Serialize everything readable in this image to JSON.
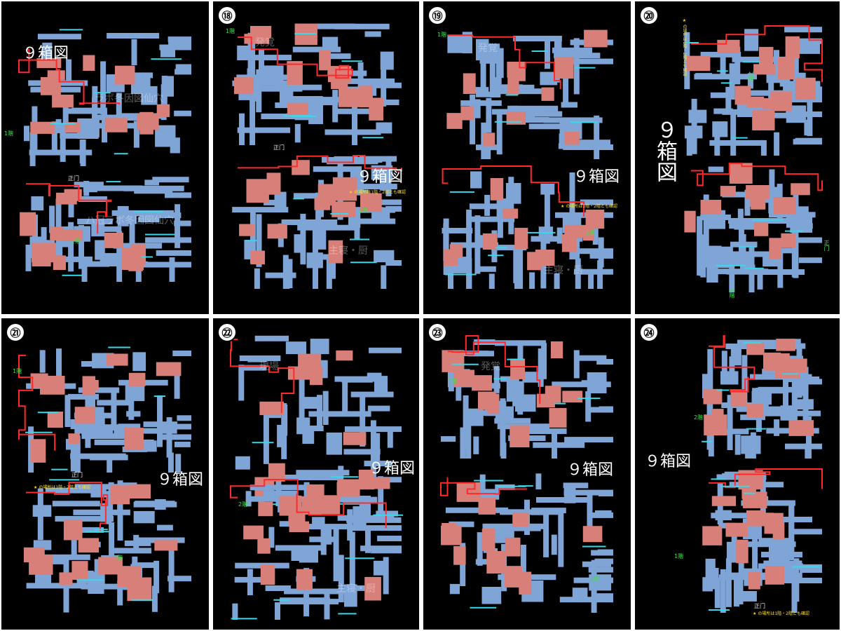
{
  "colors": {
    "background": "#000000",
    "room_blue": "#7fa4d6",
    "room_red": "#d77f78",
    "route_red": "#ff2a2a",
    "route_cyan": "#38d7ea",
    "label_green": "#3ee04a",
    "note_yellow": "#ffe033",
    "star": "#ffd21e"
  },
  "panels": [
    {
      "number": "",
      "title": "９箱図",
      "labels": {
        "first_floor": "1階",
        "gate": "正门",
        "second_floor": "2階"
      },
      "ghost_text": [
        "ラボ冬因図仙穴",
        "ハ冠ラボ冬因図仙穴"
      ]
    },
    {
      "number": "⑱",
      "title": "９箱図",
      "labels": {
        "first_floor": "1階",
        "gate": "正门",
        "second_floor": "2階"
      },
      "note_icon": "star-icon",
      "note": "の場所は1階・2階とも確認",
      "ghost_text": [
        "発覚",
        "主寝・厨"
      ]
    },
    {
      "number": "⑲",
      "title": "９箱図",
      "labels": {
        "first_floor": "1階",
        "second_floor": "2階"
      },
      "note_icon": "star-icon",
      "note": "の場所は1階・2階とも確認",
      "ghost_text": [
        "発覚",
        "主寝・厨"
      ]
    },
    {
      "number": "⑳",
      "title": "９箱図",
      "labels": {
        "first_floor": "1階",
        "gate": "正门",
        "second_floor": "2階"
      },
      "note_icon": "star-icon",
      "note": "の場所は1階・2階とも確認"
    },
    {
      "number": "㉑",
      "title": "９箱図",
      "labels": {
        "first_floor": "1階",
        "gate": "正门",
        "second_floor": "2階"
      },
      "note_icon": "star-icon",
      "note": "の場所は1階・2階とも確認"
    },
    {
      "number": "㉒",
      "title": "９箱図",
      "labels": {
        "second_floor": "2階"
      },
      "ghost_text": [
        "現場",
        "主寝・厨"
      ]
    },
    {
      "number": "㉓",
      "title": "９箱図",
      "labels": {
        "first_floor": "1階",
        "second_floor": "2階"
      },
      "ghost_text": [
        "発覚"
      ]
    },
    {
      "number": "㉔",
      "title": "９箱図",
      "labels": {
        "first_floor": "1階",
        "gate": "正门",
        "second_floor": "2階"
      },
      "note_icon": "star-icon",
      "note": "の場所は1階・2階とも確認"
    }
  ]
}
